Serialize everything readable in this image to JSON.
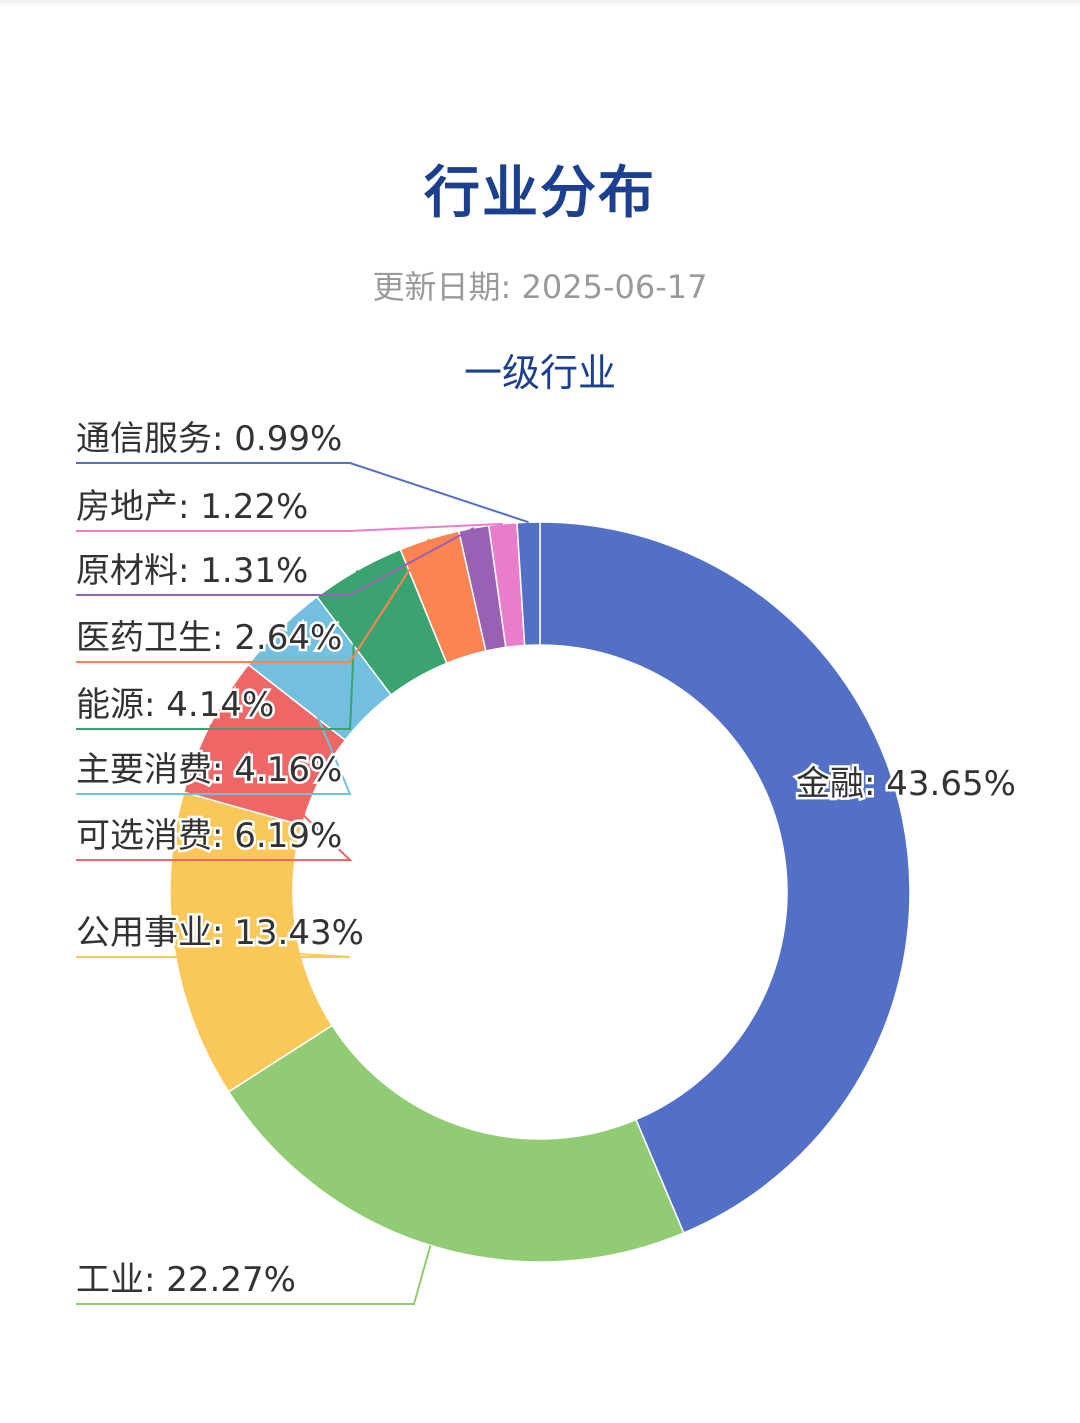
{
  "page": {
    "title": "行业分布",
    "update_label": "更新日期:",
    "update_date": "2025-06-17"
  },
  "chart_data": {
    "type": "pie",
    "style": "donut",
    "title": "一级行业",
    "label_format": "name: percent",
    "slices": [
      {
        "name": "金融",
        "value": 43.65,
        "label": "金融: 43.65%",
        "color": "#5470c6"
      },
      {
        "name": "工业",
        "value": 22.27,
        "label": "工业: 22.27%",
        "color": "#91cc75"
      },
      {
        "name": "公用事业",
        "value": 13.43,
        "label": "公用事业: 13.43%",
        "color": "#fac858"
      },
      {
        "name": "可选消费",
        "value": 6.19,
        "label": "可选消费: 6.19%",
        "color": "#ee6666"
      },
      {
        "name": "主要消费",
        "value": 4.16,
        "label": "主要消费: 4.16%",
        "color": "#73c0de"
      },
      {
        "name": "能源",
        "value": 4.14,
        "label": "能源: 4.14%",
        "color": "#3ba272"
      },
      {
        "name": "医药卫生",
        "value": 2.64,
        "label": "医药卫生: 2.64%",
        "color": "#fc8452"
      },
      {
        "name": "原材料",
        "value": 1.31,
        "label": "原材料: 1.31%",
        "color": "#9a60b4"
      },
      {
        "name": "房地产",
        "value": 1.22,
        "label": "房地产: 1.22%",
        "color": "#ea7ccc"
      },
      {
        "name": "通信服务",
        "value": 0.99,
        "label": "通信服务: 0.99%",
        "color": "#5470c6"
      }
    ]
  }
}
